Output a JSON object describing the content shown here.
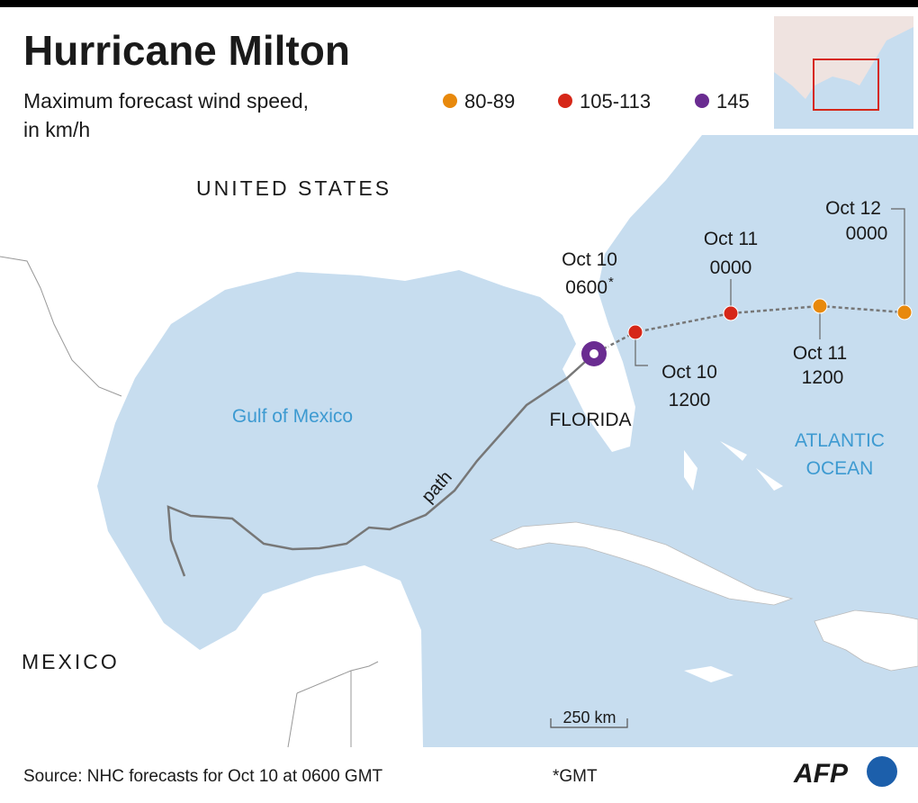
{
  "header": {
    "title": "Hurricane Milton",
    "subtitle": [
      "Maximum forecast wind speed,",
      "in km/h"
    ]
  },
  "legend": [
    {
      "label": "80-89",
      "color": "#e8890c"
    },
    {
      "label": "105-113",
      "color": "#d62718"
    },
    {
      "label": "145",
      "color": "#6a2c91"
    }
  ],
  "map_labels": {
    "united_states": "UNITED STATES",
    "mexico": "MEXICO",
    "gulf": "Gulf of Mexico",
    "florida": "FLORIDA",
    "atlantic": [
      "ATLANTIC",
      "OCEAN"
    ],
    "path": "path"
  },
  "forecast_points": [
    {
      "date": "Oct 10",
      "time": "0600",
      "note_mark": "*",
      "color": "#6a2c91"
    },
    {
      "date": "Oct 10",
      "time": "1200",
      "color": "#d62718"
    },
    {
      "date": "Oct 11",
      "time": "0000",
      "color": "#d62718"
    },
    {
      "date": "Oct 11",
      "time": "1200",
      "color": "#e8890c"
    },
    {
      "date": "Oct 12",
      "time": "0000",
      "color": "#e8890c"
    }
  ],
  "scale": "250 km",
  "footer": {
    "source": "Source: NHC forecasts for Oct 10 at 0600 GMT",
    "note": "*GMT",
    "logo": "AFP"
  }
}
